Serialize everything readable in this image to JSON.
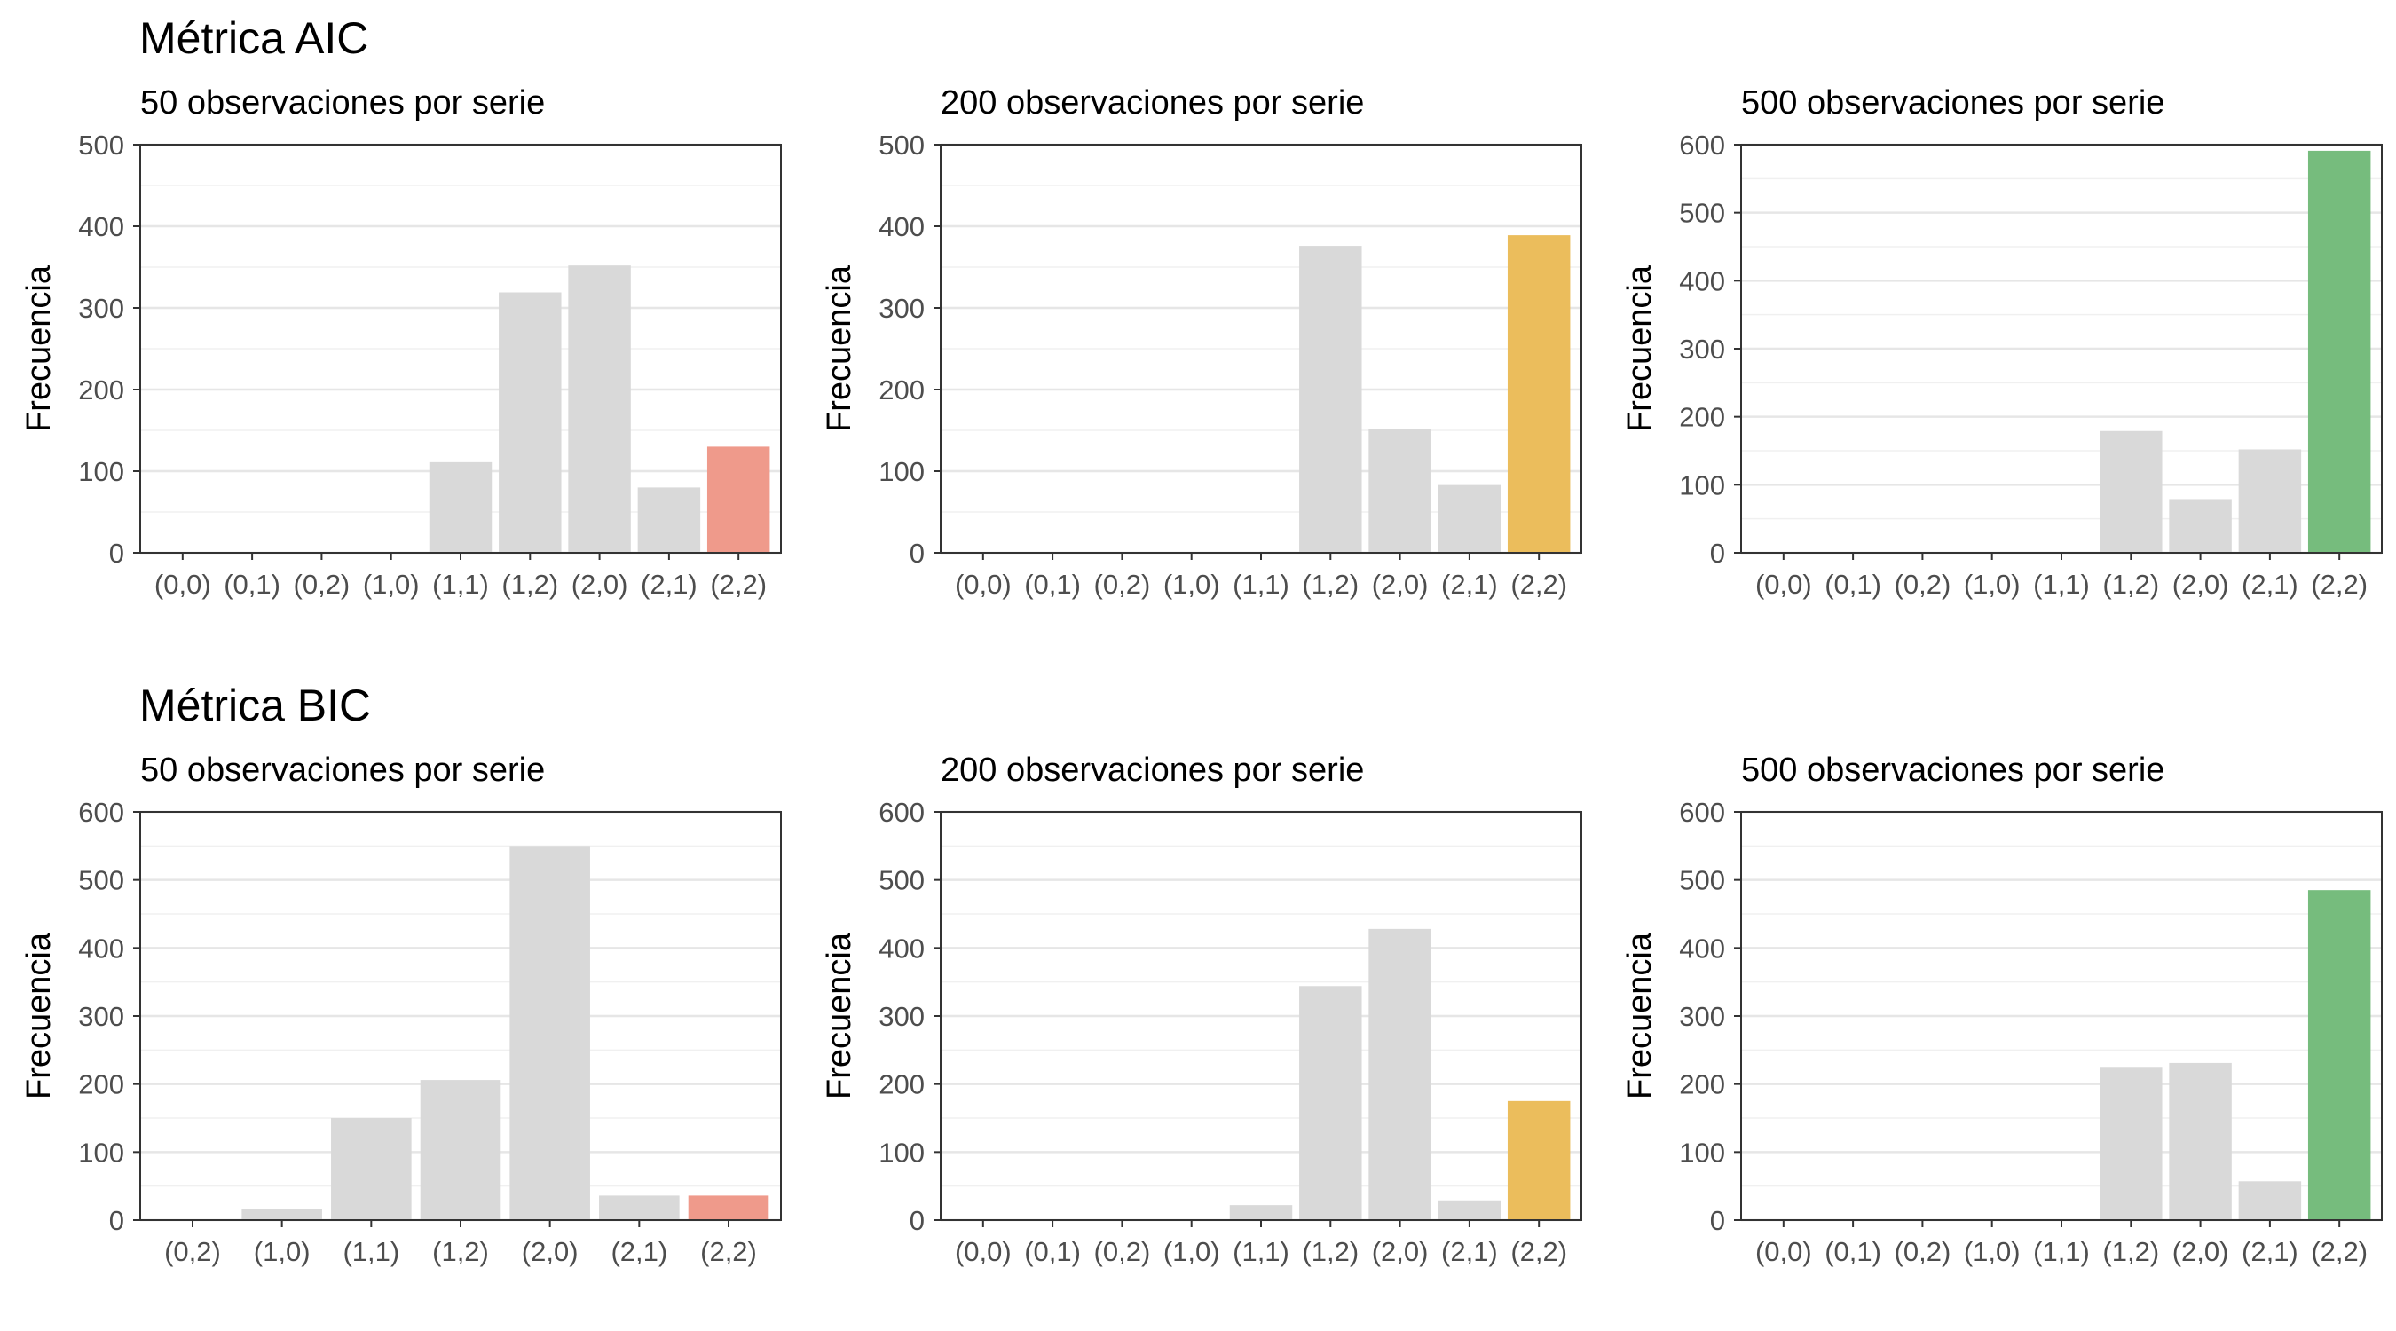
{
  "sections": [
    {
      "title": "Métrica AIC"
    },
    {
      "title": "Métrica BIC"
    }
  ],
  "colors": {
    "default_bar": "#d9d9d9",
    "n50_highlight": "#ef9a8b",
    "n200_highlight": "#ebbd5c",
    "n500_highlight": "#76bc7d",
    "grid_major": "#e6e6e6",
    "grid_minor": "#f0f0f0",
    "frame": "#333333"
  },
  "chart_data": [
    {
      "type": "bar",
      "section": "Métrica AIC",
      "title": "50 observaciones por serie",
      "xlabel": "",
      "ylabel": "Frecuencia",
      "ylim": [
        0,
        500
      ],
      "yticks": [
        0,
        100,
        200,
        300,
        400,
        500
      ],
      "grid": true,
      "highlight": "(2,2)",
      "highlight_color": "#ef9a8b",
      "categories": [
        "(0,0)",
        "(0,1)",
        "(0,2)",
        "(1,0)",
        "(1,1)",
        "(1,2)",
        "(2,0)",
        "(2,1)",
        "(2,2)"
      ],
      "values": [
        1,
        1,
        1,
        1,
        111,
        319,
        352,
        80,
        130
      ]
    },
    {
      "type": "bar",
      "section": "Métrica AIC",
      "title": "200 observaciones por serie",
      "xlabel": "",
      "ylabel": "Frecuencia",
      "ylim": [
        0,
        500
      ],
      "yticks": [
        0,
        100,
        200,
        300,
        400,
        500
      ],
      "grid": true,
      "highlight": "(2,2)",
      "highlight_color": "#ebbd5c",
      "categories": [
        "(0,0)",
        "(0,1)",
        "(0,2)",
        "(1,0)",
        "(1,1)",
        "(1,2)",
        "(2,0)",
        "(2,1)",
        "(2,2)"
      ],
      "values": [
        1,
        1,
        1,
        1,
        1,
        376,
        152,
        83,
        389
      ]
    },
    {
      "type": "bar",
      "section": "Métrica AIC",
      "title": "500 observaciones por serie",
      "xlabel": "",
      "ylabel": "Frecuencia",
      "ylim": [
        0,
        600
      ],
      "yticks": [
        0,
        100,
        200,
        300,
        400,
        500,
        600
      ],
      "grid": true,
      "highlight": "(2,2)",
      "highlight_color": "#76bc7d",
      "categories": [
        "(0,0)",
        "(0,1)",
        "(0,2)",
        "(1,0)",
        "(1,1)",
        "(1,2)",
        "(2,0)",
        "(2,1)",
        "(2,2)"
      ],
      "values": [
        1,
        1,
        1,
        1,
        1,
        179,
        79,
        152,
        591
      ]
    },
    {
      "type": "bar",
      "section": "Métrica BIC",
      "title": "50 observaciones por serie",
      "xlabel": "",
      "ylabel": "Frecuencia",
      "ylim": [
        0,
        600
      ],
      "yticks": [
        0,
        100,
        200,
        300,
        400,
        500,
        600
      ],
      "grid": true,
      "highlight": "(2,2)",
      "highlight_color": "#ef9a8b",
      "categories": [
        "(0,2)",
        "(1,0)",
        "(1,1)",
        "(1,2)",
        "(2,0)",
        "(2,1)",
        "(2,2)"
      ],
      "values": [
        1,
        16,
        150,
        206,
        550,
        36,
        36
      ]
    },
    {
      "type": "bar",
      "section": "Métrica BIC",
      "title": "200 observaciones por serie",
      "xlabel": "",
      "ylabel": "Frecuencia",
      "ylim": [
        0,
        600
      ],
      "yticks": [
        0,
        100,
        200,
        300,
        400,
        500,
        600
      ],
      "grid": true,
      "highlight": "(2,2)",
      "highlight_color": "#ebbd5c",
      "categories": [
        "(0,0)",
        "(0,1)",
        "(0,2)",
        "(1,0)",
        "(1,1)",
        "(1,2)",
        "(2,0)",
        "(2,1)",
        "(2,2)"
      ],
      "values": [
        1,
        1,
        1,
        1,
        22,
        344,
        428,
        29,
        175
      ]
    },
    {
      "type": "bar",
      "section": "Métrica BIC",
      "title": "500 observaciones por serie",
      "xlabel": "",
      "ylabel": "Frecuencia",
      "ylim": [
        0,
        600
      ],
      "yticks": [
        0,
        100,
        200,
        300,
        400,
        500,
        600
      ],
      "grid": true,
      "highlight": "(2,2)",
      "highlight_color": "#76bc7d",
      "categories": [
        "(0,0)",
        "(0,1)",
        "(0,2)",
        "(1,0)",
        "(1,1)",
        "(1,2)",
        "(2,0)",
        "(2,1)",
        "(2,2)"
      ],
      "values": [
        1,
        1,
        1,
        1,
        1,
        224,
        231,
        57,
        485
      ]
    }
  ]
}
